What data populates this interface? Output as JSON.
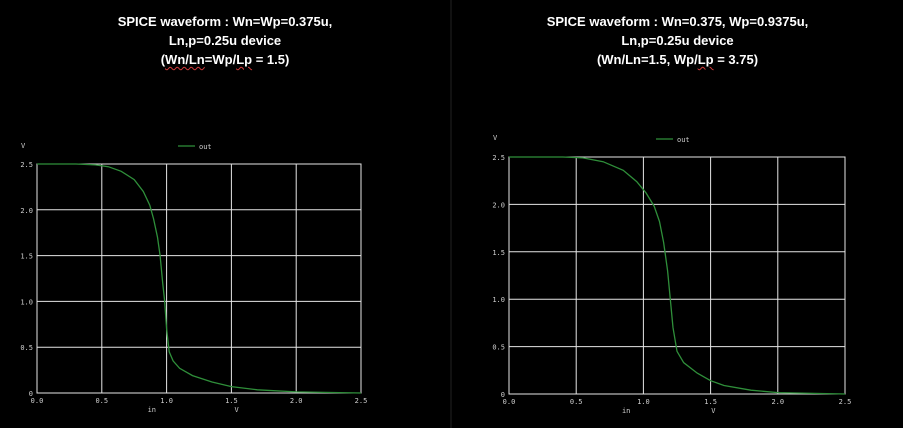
{
  "panels": [
    {
      "title_lines": [
        [
          "SPICE waveform : Wn=Wp=0.375u,"
        ],
        [
          "Ln,p=0.25u device"
        ],
        [
          "(",
          "Wn/Ln",
          "=Wp/",
          "Lp",
          " = 1.5)"
        ]
      ]
    },
    {
      "title_lines": [
        [
          "SPICE waveform : Wn=0.375, Wp=0.9375u,"
        ],
        [
          "Ln,p=0.25u device"
        ],
        [
          "(Wn/Ln=1.5, Wp/",
          "Lp",
          " = 3.75)"
        ]
      ]
    }
  ],
  "chart_data": [
    {
      "type": "line",
      "title": "",
      "ylabel": "V",
      "xlabel": "in",
      "xunit": "V",
      "xlim": [
        0,
        2.5
      ],
      "ylim": [
        0,
        2.5
      ],
      "grid": true,
      "legend_position": "top-center",
      "x_ticks": [
        "0.0",
        "0.5",
        "1.0",
        "1.5",
        "2.0",
        "2.5"
      ],
      "y_ticks": [
        "0",
        "0.5",
        "1.0",
        "1.5",
        "2.0",
        "2.5"
      ],
      "series": [
        {
          "name": "out",
          "color": "#2f8f3a",
          "points": [
            [
              0.0,
              2.5
            ],
            [
              0.3,
              2.5
            ],
            [
              0.45,
              2.49
            ],
            [
              0.55,
              2.47
            ],
            [
              0.65,
              2.42
            ],
            [
              0.75,
              2.33
            ],
            [
              0.82,
              2.2
            ],
            [
              0.87,
              2.05
            ],
            [
              0.9,
              1.9
            ],
            [
              0.93,
              1.7
            ],
            [
              0.95,
              1.5
            ],
            [
              0.97,
              1.2
            ],
            [
              0.985,
              1.0
            ],
            [
              1.0,
              0.7
            ],
            [
              1.02,
              0.45
            ],
            [
              1.05,
              0.35
            ],
            [
              1.1,
              0.27
            ],
            [
              1.2,
              0.19
            ],
            [
              1.35,
              0.12
            ],
            [
              1.5,
              0.07
            ],
            [
              1.7,
              0.035
            ],
            [
              2.0,
              0.012
            ],
            [
              2.5,
              0.0
            ]
          ]
        }
      ]
    },
    {
      "type": "line",
      "title": "",
      "ylabel": "V",
      "xlabel": "in",
      "xunit": "V",
      "xlim": [
        0,
        2.5
      ],
      "ylim": [
        0,
        2.5
      ],
      "grid": true,
      "legend_position": "top-center",
      "x_ticks": [
        "0.0",
        "0.5",
        "1.0",
        "1.5",
        "2.0",
        "2.5"
      ],
      "y_ticks": [
        "0",
        "0.5",
        "1.0",
        "1.5",
        "2.0",
        "2.5"
      ],
      "series": [
        {
          "name": "out",
          "color": "#2f8f3a",
          "points": [
            [
              0.0,
              2.5
            ],
            [
              0.4,
              2.5
            ],
            [
              0.55,
              2.49
            ],
            [
              0.7,
              2.45
            ],
            [
              0.85,
              2.36
            ],
            [
              0.95,
              2.24
            ],
            [
              1.02,
              2.12
            ],
            [
              1.08,
              1.98
            ],
            [
              1.12,
              1.82
            ],
            [
              1.15,
              1.6
            ],
            [
              1.18,
              1.3
            ],
            [
              1.2,
              1.0
            ],
            [
              1.22,
              0.7
            ],
            [
              1.25,
              0.45
            ],
            [
              1.3,
              0.33
            ],
            [
              1.4,
              0.22
            ],
            [
              1.5,
              0.14
            ],
            [
              1.6,
              0.09
            ],
            [
              1.8,
              0.04
            ],
            [
              2.0,
              0.015
            ],
            [
              2.5,
              0.0
            ]
          ]
        }
      ]
    }
  ]
}
